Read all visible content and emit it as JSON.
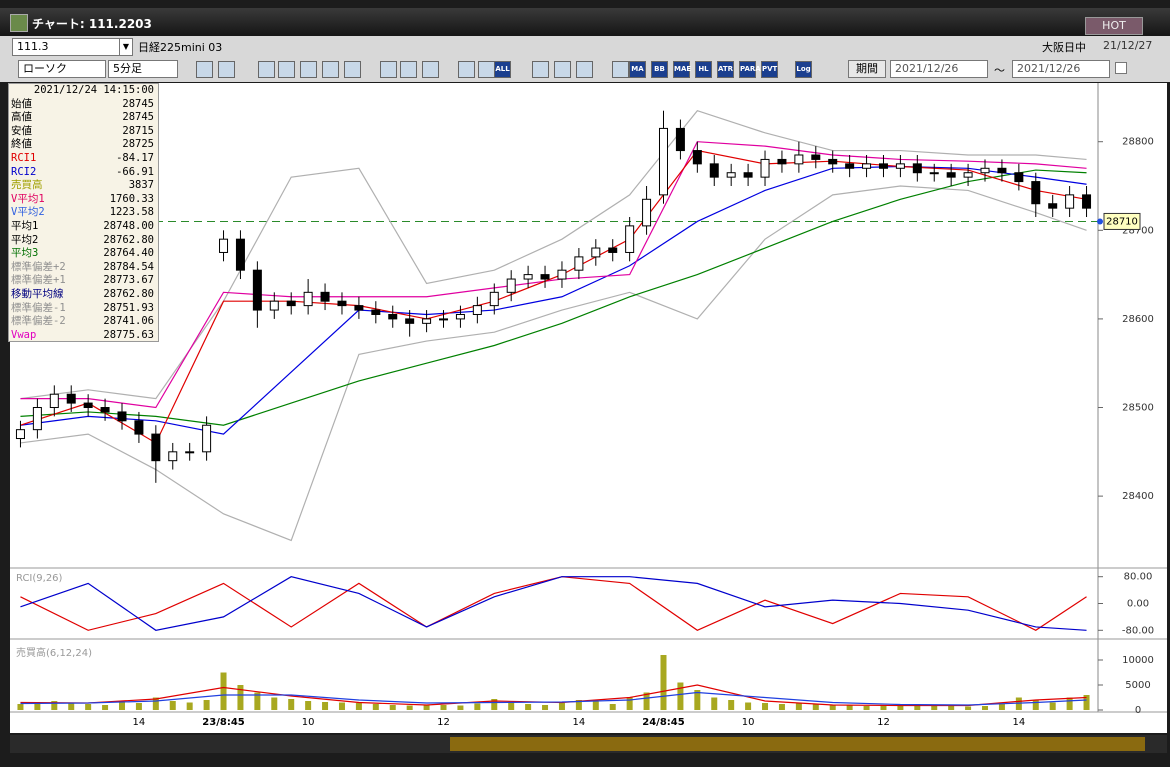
{
  "window": {
    "title": "チャート: 111.2203",
    "hot": "HOT"
  },
  "toolbar": {
    "code": "111.3",
    "name": "日経225mini 03",
    "market": "大阪日中",
    "date": "21/12/27",
    "chart_kind": "ローソク",
    "interval": "5分足",
    "period": "期間",
    "from": "2021/12/26",
    "tilde": "～",
    "to": "2021/12/26",
    "buttons": [
      "ALL",
      "MA",
      "BB",
      "MAE",
      "HL",
      "ATR",
      "PARA",
      "PVT",
      "Log"
    ]
  },
  "info": {
    "datetime": "2021/12/24  14:15:00",
    "rows": [
      {
        "label": "始値",
        "value": "28745",
        "color": "#000000"
      },
      {
        "label": "高値",
        "value": "28745",
        "color": "#000000"
      },
      {
        "label": "安値",
        "value": "28715",
        "color": "#000000"
      },
      {
        "label": "終値",
        "value": "28725",
        "color": "#000000"
      },
      {
        "label": "RCI1",
        "value": "-84.17",
        "color": "#e00000"
      },
      {
        "label": "RCI2",
        "value": "-66.91",
        "color": "#0000cc"
      },
      {
        "label": "売買高",
        "value": "3837",
        "color": "#a0a000"
      },
      {
        "label": "V平均1",
        "value": "1760.33",
        "color": "#e00060"
      },
      {
        "label": "V平均2",
        "value": "1223.58",
        "color": "#3060e0"
      },
      {
        "label": "平均1",
        "value": "28748.00",
        "color": "#000000"
      },
      {
        "label": "平均2",
        "value": "28762.80",
        "color": "#000000"
      },
      {
        "label": "平均3",
        "value": "28764.40",
        "color": "#007000"
      },
      {
        "label": "標準偏差+2",
        "value": "28784.54",
        "color": "#909090"
      },
      {
        "label": "標準偏差+1",
        "value": "28773.67",
        "color": "#909090"
      },
      {
        "label": "移動平均線",
        "value": "28762.80",
        "color": "#000080"
      },
      {
        "label": "標準偏差-1",
        "value": "28751.93",
        "color": "#909090"
      },
      {
        "label": "標準偏差-2",
        "value": "28741.06",
        "color": "#909090"
      },
      {
        "label": "Vwap",
        "value": "28775.63",
        "color": "#e000c0"
      }
    ]
  },
  "chart_data": [
    {
      "type": "candlestick",
      "categories": [
        null,
        null,
        null,
        null,
        null,
        null,
        null,
        "14",
        null,
        null,
        null,
        null,
        "23/8:45",
        null,
        null,
        null,
        null,
        "10",
        null,
        null,
        null,
        null,
        null,
        null,
        null,
        "12",
        null,
        null,
        null,
        null,
        null,
        null,
        null,
        "14",
        null,
        null,
        null,
        null,
        "24/8:45",
        null,
        null,
        null,
        null,
        "10",
        null,
        null,
        null,
        null,
        null,
        null,
        null,
        "12",
        null,
        null,
        null,
        null,
        null,
        null,
        null,
        "14",
        null,
        null,
        null,
        null
      ],
      "open": [
        28465,
        28475,
        28500,
        28515,
        28505,
        28500,
        28495,
        28485,
        28470,
        28440,
        28450,
        28450,
        28675,
        28690,
        28655,
        28610,
        28620,
        28615,
        28630,
        28620,
        28615,
        28610,
        28605,
        28600,
        28595,
        28600,
        28600,
        28605,
        28615,
        28630,
        28645,
        28650,
        28645,
        28655,
        28670,
        28680,
        28675,
        28705,
        28740,
        28815,
        28790,
        28775,
        28760,
        28765,
        28760,
        28780,
        28775,
        28785,
        28780,
        28775,
        28770,
        28775,
        28770,
        28775,
        28765,
        28765,
        28760,
        28765,
        28770,
        28765,
        28755,
        28730,
        28725,
        28740
      ],
      "high": [
        28485,
        28510,
        28525,
        28525,
        28515,
        28510,
        28505,
        28495,
        28480,
        28460,
        28460,
        28490,
        28700,
        28700,
        28665,
        28630,
        28630,
        28645,
        28640,
        28630,
        28625,
        28620,
        28615,
        28610,
        28610,
        28610,
        28615,
        28625,
        28640,
        28655,
        28660,
        28660,
        28665,
        28680,
        28690,
        28690,
        28715,
        28750,
        28835,
        28825,
        28800,
        28785,
        28775,
        28775,
        28790,
        28790,
        28800,
        28795,
        28790,
        28785,
        28785,
        28785,
        28785,
        28785,
        28775,
        28775,
        28775,
        28780,
        28780,
        28775,
        28765,
        28740,
        28750,
        28750
      ],
      "low": [
        28455,
        28465,
        28490,
        28495,
        28490,
        28485,
        28475,
        28460,
        28415,
        28430,
        28440,
        28440,
        28665,
        28645,
        28590,
        28600,
        28605,
        28605,
        28610,
        28605,
        28600,
        28595,
        28590,
        28580,
        28585,
        28590,
        28590,
        28595,
        28605,
        28620,
        28635,
        28635,
        28635,
        28645,
        28660,
        28665,
        28665,
        28695,
        28730,
        28780,
        28765,
        28750,
        28750,
        28750,
        28750,
        28765,
        28765,
        28770,
        28765,
        28760,
        28760,
        28760,
        28760,
        28755,
        28755,
        28750,
        28750,
        28755,
        28755,
        28745,
        28715,
        28715,
        28715,
        28715
      ],
      "close": [
        28475,
        28500,
        28515,
        28505,
        28500,
        28495,
        28485,
        28470,
        28440,
        28450,
        28450,
        28480,
        28690,
        28655,
        28610,
        28620,
        28615,
        28630,
        28620,
        28615,
        28610,
        28605,
        28600,
        28595,
        28600,
        28600,
        28605,
        28615,
        28630,
        28645,
        28650,
        28645,
        28655,
        28670,
        28680,
        28675,
        28705,
        28735,
        28815,
        28790,
        28775,
        28760,
        28765,
        28760,
        28780,
        28775,
        28785,
        28780,
        28775,
        28770,
        28775,
        28770,
        28775,
        28765,
        28765,
        28760,
        28765,
        28770,
        28765,
        28755,
        28730,
        28725,
        28740,
        28725
      ],
      "ylim": [
        28320,
        28864
      ],
      "yticks": [
        28400,
        28500,
        28600,
        28700,
        28800
      ],
      "current_price": 28710,
      "overlays": [
        {
          "color": "#b0b0b0",
          "x": [
            0,
            4,
            8,
            12,
            16,
            20,
            24,
            28,
            32,
            36,
            40,
            44,
            48,
            52,
            56,
            60,
            63
          ],
          "values": [
            28510,
            28520,
            28510,
            28620,
            28760,
            28770,
            28640,
            28655,
            28690,
            28740,
            28835,
            28810,
            28790,
            28790,
            28785,
            28785,
            28780
          ]
        },
        {
          "color": "#b0b0b0",
          "x": [
            0,
            4,
            8,
            12,
            16,
            20,
            24,
            28,
            32,
            36,
            40,
            44,
            48,
            52,
            56,
            60,
            63
          ],
          "values": [
            28460,
            28470,
            28430,
            28380,
            28350,
            28560,
            28575,
            28585,
            28610,
            28630,
            28600,
            28690,
            28740,
            28750,
            28745,
            28720,
            28700
          ]
        },
        {
          "color": "#008000",
          "x": [
            0,
            4,
            8,
            12,
            16,
            20,
            24,
            28,
            32,
            36,
            40,
            44,
            48,
            52,
            56,
            60,
            63
          ],
          "values": [
            28490,
            28495,
            28490,
            28480,
            28505,
            28530,
            28550,
            28570,
            28595,
            28625,
            28650,
            28680,
            28710,
            28735,
            28755,
            28768,
            28765
          ]
        },
        {
          "color": "#0000e0",
          "x": [
            0,
            4,
            8,
            12,
            16,
            20,
            24,
            28,
            32,
            36,
            40,
            44,
            48,
            52,
            56,
            60,
            63
          ],
          "values": [
            28480,
            28490,
            28485,
            28470,
            28540,
            28610,
            28605,
            28610,
            28625,
            28660,
            28710,
            28745,
            28770,
            28772,
            28770,
            28760,
            28752
          ]
        },
        {
          "color": "#e000a0",
          "x": [
            0,
            4,
            8,
            12,
            16,
            20,
            24,
            28,
            32,
            36,
            40,
            44,
            48,
            52,
            56,
            60,
            63
          ],
          "values": [
            28510,
            28510,
            28500,
            28630,
            28625,
            28625,
            28625,
            28635,
            28645,
            28650,
            28800,
            28795,
            28785,
            28780,
            28778,
            28775,
            28770
          ]
        },
        {
          "color": "#e00000",
          "x": [
            0,
            4,
            8,
            12,
            16,
            20,
            24,
            28,
            32,
            36,
            40,
            44,
            48,
            52,
            56,
            60,
            63
          ],
          "values": [
            28480,
            28505,
            28460,
            28620,
            28620,
            28615,
            28600,
            28620,
            28650,
            28690,
            28790,
            28775,
            28778,
            28772,
            28768,
            28745,
            28735
          ]
        }
      ]
    },
    {
      "type": "line",
      "title": "RCI(9,26)",
      "ylim": [
        -100,
        100
      ],
      "yticks": [
        {
          "value": 80,
          "label": "80.00"
        },
        {
          "value": 0,
          "label": "0.00"
        },
        {
          "value": -80,
          "label": "-80.00"
        }
      ],
      "x": [
        0,
        4,
        8,
        12,
        16,
        20,
        24,
        28,
        32,
        36,
        40,
        44,
        48,
        52,
        56,
        60,
        63
      ],
      "series": [
        {
          "color": "#e00000",
          "values": [
            20,
            -80,
            -30,
            60,
            -70,
            60,
            -70,
            30,
            80,
            60,
            -80,
            10,
            -60,
            30,
            20,
            -80,
            20
          ]
        },
        {
          "color": "#0000cc",
          "values": [
            -10,
            60,
            -80,
            -40,
            80,
            30,
            -70,
            20,
            80,
            80,
            60,
            -10,
            10,
            0,
            -20,
            -70,
            -80
          ]
        }
      ]
    },
    {
      "type": "bar",
      "title": "売買高(6,12,24)",
      "color": "#a8a820",
      "ylim": [
        0,
        13000
      ],
      "yticks": [
        0,
        5000,
        10000
      ],
      "values": [
        1200,
        1500,
        1800,
        1300,
        1200,
        1000,
        1600,
        1400,
        2500,
        1800,
        1500,
        2000,
        7500,
        5000,
        3500,
        2500,
        2200,
        1800,
        1600,
        1500,
        1400,
        1200,
        1000,
        900,
        1100,
        1000,
        900,
        1300,
        2200,
        1500,
        1200,
        1000,
        1400,
        2000,
        1800,
        1200,
        2500,
        3500,
        11000,
        5500,
        4000,
        2500,
        2000,
        1500,
        1400,
        1200,
        1300,
        1100,
        1000,
        900,
        800,
        1000,
        900,
        1100,
        800,
        900,
        700,
        800,
        1200,
        2500,
        2000,
        1500,
        2500,
        3000
      ],
      "lines": [
        {
          "color": "#e00000",
          "x": [
            0,
            4,
            8,
            12,
            16,
            20,
            24,
            28,
            32,
            36,
            40,
            44,
            48,
            52,
            56,
            60,
            63
          ],
          "values": [
            1500,
            1400,
            2200,
            4500,
            2800,
            1500,
            1000,
            1800,
            1500,
            2500,
            5000,
            1800,
            1000,
            900,
            900,
            2000,
            2500
          ]
        },
        {
          "color": "#2040e0",
          "x": [
            0,
            4,
            8,
            12,
            16,
            20,
            24,
            28,
            32,
            36,
            40,
            44,
            48,
            52,
            56,
            60,
            63
          ],
          "values": [
            1300,
            1400,
            1800,
            3000,
            3000,
            2000,
            1400,
            1500,
            1600,
            2000,
            3500,
            2500,
            1500,
            1100,
            1000,
            1500,
            2000
          ]
        }
      ]
    }
  ]
}
